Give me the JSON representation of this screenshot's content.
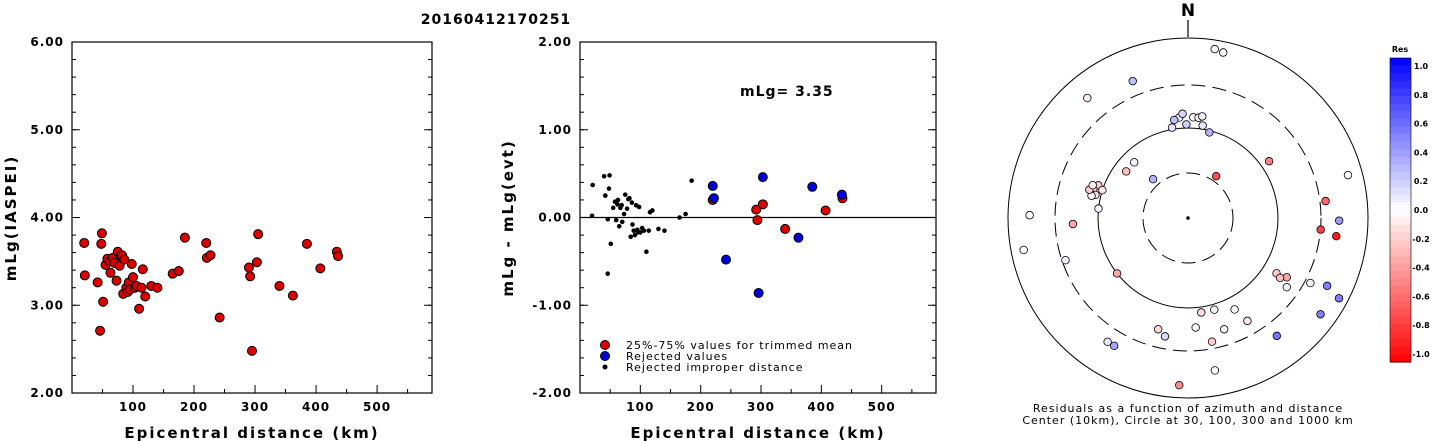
{
  "title": "20160412170251",
  "chart_data": [
    {
      "type": "scatter",
      "xlabel": "Epicentral distance (km)",
      "ylabel": "mLg(IASPEI)",
      "xlim": [
        0,
        590
      ],
      "ylim": [
        2.0,
        6.0
      ],
      "x_ticks": [
        "100",
        "200",
        "300",
        "400",
        "500"
      ],
      "y_ticks": [
        "2.00",
        "3.00",
        "4.00",
        "5.00",
        "6.00"
      ],
      "series": [
        {
          "color": "#dd0000",
          "points": [
            [
              20,
              3.71
            ],
            [
              21,
              3.34
            ],
            [
              42,
              3.26
            ],
            [
              46,
              2.71
            ],
            [
              48,
              3.7
            ],
            [
              49,
              3.82
            ],
            [
              51,
              3.04
            ],
            [
              55,
              3.46
            ],
            [
              58,
              3.53
            ],
            [
              62,
              3.5
            ],
            [
              63,
              3.37
            ],
            [
              67,
              3.54
            ],
            [
              70,
              3.48
            ],
            [
              73,
              3.28
            ],
            [
              75,
              3.61
            ],
            [
              78,
              3.45
            ],
            [
              80,
              3.56
            ],
            [
              82,
              3.57
            ],
            [
              84,
              3.13
            ],
            [
              86,
              3.52
            ],
            [
              89,
              3.2
            ],
            [
              91,
              3.15
            ],
            [
              93,
              3.26
            ],
            [
              95,
              3.18
            ],
            [
              98,
              3.47
            ],
            [
              100,
              3.32
            ],
            [
              103,
              3.2
            ],
            [
              106,
              3.22
            ],
            [
              110,
              2.96
            ],
            [
              114,
              3.2
            ],
            [
              116,
              3.41
            ],
            [
              120,
              3.1
            ],
            [
              130,
              3.22
            ],
            [
              140,
              3.2
            ],
            [
              165,
              3.36
            ],
            [
              175,
              3.39
            ],
            [
              185,
              3.77
            ],
            [
              220,
              3.71
            ],
            [
              221,
              3.54
            ],
            [
              227,
              3.57
            ],
            [
              242,
              2.86
            ],
            [
              290,
              3.43
            ],
            [
              292,
              3.33
            ],
            [
              295,
              2.48
            ],
            [
              303,
              3.49
            ],
            [
              305,
              3.81
            ],
            [
              340,
              3.22
            ],
            [
              362,
              3.11
            ],
            [
              385,
              3.7
            ],
            [
              407,
              3.42
            ],
            [
              434,
              3.61
            ],
            [
              436,
              3.56
            ]
          ]
        }
      ]
    },
    {
      "type": "scatter",
      "xlabel": "Epicentral distance (km)",
      "ylabel": "mLg - mLg(evt)",
      "xlim": [
        0,
        590
      ],
      "ylim": [
        -2.0,
        2.0
      ],
      "x_ticks": [
        "100",
        "200",
        "300",
        "400",
        "500"
      ],
      "y_ticks": [
        "-2.00",
        "-1.00",
        "0.00",
        "1.00",
        "2.00"
      ],
      "annotation": "mLg= 3.35",
      "series": [
        {
          "name": "25%-75% values for trimmed mean",
          "color": "#dd0000",
          "points": [
            [
              220,
              0.2
            ],
            [
              292,
              0.09
            ],
            [
              294,
              -0.03
            ],
            [
              303,
              0.15
            ],
            [
              340,
              -0.13
            ],
            [
              407,
              0.08
            ],
            [
              435,
              0.22
            ]
          ]
        },
        {
          "name": "Rejected values",
          "color": "#0000dd",
          "points": [
            [
              220,
              0.36
            ],
            [
              222,
              0.22
            ],
            [
              242,
              -0.48
            ],
            [
              296,
              -0.86
            ],
            [
              303,
              0.46
            ],
            [
              362,
              -0.23
            ],
            [
              385,
              0.35
            ],
            [
              434,
              0.26
            ]
          ]
        },
        {
          "name": "Rejected improper distance",
          "color": "#000000",
          "points": [
            [
              20,
              0.02
            ],
            [
              21,
              0.37
            ],
            [
              40,
              0.47
            ],
            [
              42,
              0.25
            ],
            [
              46,
              -0.02
            ],
            [
              48,
              0.33
            ],
            [
              49,
              0.48
            ],
            [
              51,
              -0.3
            ],
            [
              55,
              0.11
            ],
            [
              58,
              0.18
            ],
            [
              60,
              -0.03
            ],
            [
              62,
              0.15
            ],
            [
              63,
              0.2
            ],
            [
              65,
              -0.1
            ],
            [
              67,
              0.11
            ],
            [
              69,
              0.14
            ],
            [
              70,
              -0.05
            ],
            [
              73,
              0.04
            ],
            [
              75,
              0.26
            ],
            [
              78,
              0.1
            ],
            [
              80,
              0.21
            ],
            [
              82,
              0.22
            ],
            [
              84,
              -0.22
            ],
            [
              86,
              0.17
            ],
            [
              87,
              -0.08
            ],
            [
              89,
              -0.15
            ],
            [
              91,
              -0.2
            ],
            [
              93,
              0.14
            ],
            [
              95,
              -0.14
            ],
            [
              96,
              -0.17
            ],
            [
              98,
              0.12
            ],
            [
              100,
              -0.17
            ],
            [
              103,
              -0.12
            ],
            [
              106,
              -0.15
            ],
            [
              110,
              -0.39
            ],
            [
              114,
              -0.15
            ],
            [
              116,
              0.06
            ],
            [
              120,
              0.08
            ],
            [
              130,
              -0.13
            ],
            [
              140,
              -0.15
            ],
            [
              165,
              0.0
            ],
            [
              175,
              0.04
            ],
            [
              185,
              0.42
            ],
            [
              46,
              -0.64
            ]
          ]
        }
      ]
    },
    {
      "type": "scatter",
      "subtype": "polar",
      "north_label": "N",
      "caption_line1": "Residuals as a function of azimuth and distance",
      "caption_line2": "Center (10km), Circle at 30, 100, 300 and 1000 km",
      "points": [
        [
          -40,
          0.87,
          -0.05
        ],
        [
          -22,
          0.82,
          0.25
        ],
        [
          9,
          0.95,
          0.0
        ],
        [
          12,
          0.94,
          0.0
        ],
        [
          -5,
          0.56,
          0.05
        ],
        [
          -8,
          0.55,
          0.25
        ],
        [
          -10,
          0.51,
          0.1
        ],
        [
          -3,
          0.58,
          0.15
        ],
        [
          -1,
          0.52,
          0.2
        ],
        [
          3,
          0.56,
          0.0
        ],
        [
          6,
          0.56,
          -0.05
        ],
        [
          8,
          0.57,
          0.05
        ],
        [
          9,
          0.52,
          0.1
        ],
        [
          14,
          0.49,
          0.3
        ],
        [
          -42,
          0.29,
          0.3
        ],
        [
          -53,
          0.43,
          -0.25
        ],
        [
          -44,
          0.43,
          0.05
        ],
        [
          34,
          0.28,
          -0.7
        ],
        [
          55,
          0.55,
          -0.5
        ],
        [
          75,
          0.92,
          0.0
        ],
        [
          -70,
          0.53,
          -0.2
        ],
        [
          -73,
          0.55,
          -0.15
        ],
        [
          -72,
          0.5,
          -0.1
        ],
        [
          -76,
          0.53,
          -0.1
        ],
        [
          -77,
          0.55,
          0.0
        ],
        [
          -74,
          0.57,
          -0.2
        ],
        [
          -71,
          0.56,
          -0.05
        ],
        [
          -84,
          0.5,
          0.05
        ],
        [
          -109,
          0.72,
          0.05
        ],
        [
          83,
          0.77,
          -0.6
        ],
        [
          91,
          0.84,
          0.4
        ],
        [
          -93,
          0.64,
          -0.35
        ],
        [
          95,
          0.74,
          -0.75
        ],
        [
          97,
          0.83,
          -0.9
        ],
        [
          -101,
          0.93,
          0.0
        ],
        [
          -89,
          0.88,
          0.0
        ],
        [
          122,
          0.58,
          -0.2
        ],
        [
          121,
          0.64,
          -0.35
        ],
        [
          123,
          0.61,
          -0.25
        ],
        [
          125,
          0.67,
          0.05
        ],
        [
          118,
          0.77,
          0.05
        ],
        [
          116,
          0.86,
          0.5
        ],
        [
          126,
          0.91,
          0.5
        ],
        [
          118,
          0.95,
          0.5
        ],
        [
          -128,
          0.5,
          -0.35
        ],
        [
          153,
          0.57,
          0.0
        ],
        [
          150,
          0.66,
          -0.1
        ],
        [
          164,
          0.53,
          0.05
        ],
        [
          162,
          0.65,
          0.05
        ],
        [
          176,
          0.61,
          0.0
        ],
        [
          172,
          0.53,
          -0.15
        ],
        [
          169,
          0.7,
          -0.2
        ],
        [
          -165,
          0.64,
          -0.15
        ],
        [
          -169,
          0.67,
          0.15
        ],
        [
          -150,
          0.82,
          0.35
        ],
        [
          -147,
          0.82,
          0.1
        ],
        [
          -177,
          0.93,
          -0.45
        ],
        [
          170,
          0.86,
          0.0
        ],
        [
          143,
          0.82,
          0.55
        ]
      ]
    },
    {
      "type": "heatmap",
      "subtype": "colorbar",
      "title": "Res",
      "tick_labels": [
        "1.0",
        "0.8",
        "0.6",
        "0.4",
        "0.2",
        "0.0",
        "-0.2",
        "-0.4",
        "-0.6",
        "-0.8",
        "-1.0"
      ]
    }
  ]
}
